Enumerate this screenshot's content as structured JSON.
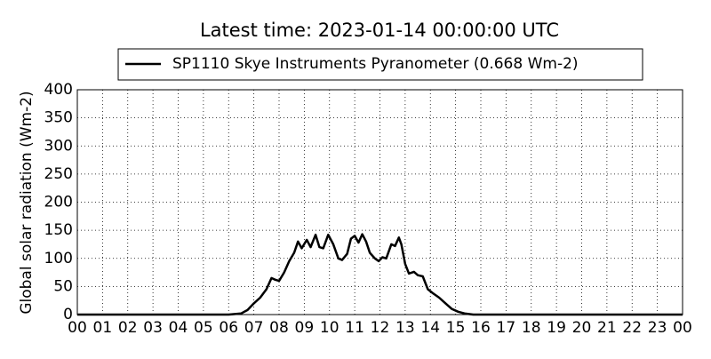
{
  "chart_data": {
    "type": "line",
    "title": "Latest time: 2023-01-14 00:00:00 UTC",
    "y_label": "Global solar radiation (Wm-2)",
    "x": [
      0,
      6,
      6.5,
      6.75,
      7,
      7.25,
      7.5,
      7.7,
      7.85,
      8,
      8.2,
      8.4,
      8.6,
      8.75,
      8.9,
      9.1,
      9.25,
      9.45,
      9.6,
      9.75,
      9.95,
      10.15,
      10.35,
      10.5,
      10.7,
      10.85,
      11,
      11.15,
      11.3,
      11.45,
      11.6,
      11.8,
      11.95,
      12.1,
      12.25,
      12.45,
      12.6,
      12.75,
      12.85,
      13,
      13.15,
      13.35,
      13.5,
      13.7,
      13.9,
      14.1,
      14.35,
      14.6,
      14.85,
      15.1,
      15.35,
      15.7,
      24
    ],
    "series": [
      {
        "name": "SP1110 Skye Instruments Pyranometer (0.668 Wm-2)",
        "color": "#000000",
        "values": [
          0,
          0,
          2,
          8,
          20,
          30,
          45,
          65,
          62,
          60,
          75,
          95,
          110,
          130,
          118,
          133,
          120,
          142,
          120,
          118,
          142,
          125,
          100,
          97,
          108,
          135,
          140,
          128,
          143,
          130,
          110,
          100,
          95,
          102,
          100,
          125,
          122,
          137,
          125,
          90,
          73,
          76,
          70,
          68,
          45,
          38,
          30,
          20,
          10,
          5,
          2,
          0,
          0
        ]
      }
    ],
    "xlim": [
      0,
      24
    ],
    "xticks": [
      {
        "value": 0,
        "label": "00"
      },
      {
        "value": 1,
        "label": "01"
      },
      {
        "value": 2,
        "label": "02"
      },
      {
        "value": 3,
        "label": "03"
      },
      {
        "value": 4,
        "label": "04"
      },
      {
        "value": 5,
        "label": "05"
      },
      {
        "value": 6,
        "label": "06"
      },
      {
        "value": 7,
        "label": "07"
      },
      {
        "value": 8,
        "label": "08"
      },
      {
        "value": 9,
        "label": "09"
      },
      10,
      11,
      12,
      13,
      14,
      15,
      16,
      17,
      18,
      19,
      20,
      21,
      22,
      23,
      {
        "value": 24,
        "label": "00"
      }
    ],
    "ylim": [
      0,
      400
    ],
    "yticks": [
      0,
      50,
      100,
      150,
      200,
      250,
      300,
      350,
      400
    ],
    "grid": true,
    "legend": "top"
  }
}
